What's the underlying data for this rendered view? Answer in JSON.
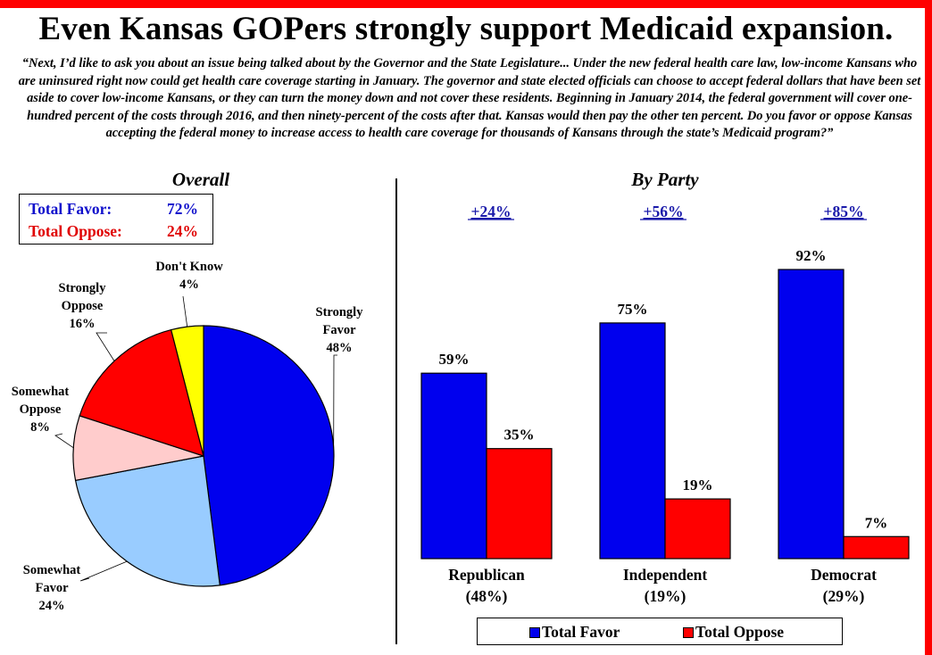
{
  "title": "Even Kansas GOPers strongly support Medicaid expansion.",
  "question": "“Next, I’d like to ask you about an issue being talked about by the Governor and the State Legislature... Under the new federal health care law, low-income Kansans who are uninsured right now could get health care coverage starting in January. The governor and state elected officials can choose to accept federal dollars that have been set aside to cover low-income Kansans, or they can turn the money down and not cover these residents. Beginning in January 2014, the federal government will cover one-hundred percent of the costs through 2016, and then ninety-percent of the costs after that. Kansas would then pay the other ten percent. Do you favor or oppose Kansas accepting the federal money to increase access to health care coverage for thousands of Kansans through the state’s Medicaid program?”",
  "totals": {
    "favor_label": "Total Favor:",
    "favor_value": "72%",
    "oppose_label": "Total Oppose:",
    "oppose_value": "24%"
  },
  "colors": {
    "favor": "#0000ee",
    "oppose": "#ff0000",
    "strongly_favor": "#0000ee",
    "somewhat_favor": "#99ccff",
    "somewhat_oppose": "#ffcccc",
    "strongly_oppose": "#ff0000",
    "dont_know": "#ffff00",
    "margin_text": "#1a1aaa"
  },
  "chart_data": [
    {
      "type": "pie",
      "title": "Overall",
      "slices": [
        {
          "label": "Strongly Favor",
          "value": 48,
          "display": "48%",
          "color": "#0000ee"
        },
        {
          "label": "Somewhat Favor",
          "value": 24,
          "display": "24%",
          "color": "#99ccff"
        },
        {
          "label": "Somewhat Oppose",
          "value": 8,
          "display": "8%",
          "color": "#ffcccc"
        },
        {
          "label": "Strongly Oppose",
          "value": 16,
          "display": "16%",
          "color": "#ff0000"
        },
        {
          "label": "Don't Know",
          "value": 4,
          "display": "4%",
          "color": "#ffff00"
        }
      ]
    },
    {
      "type": "bar",
      "title": "By Party",
      "categories": [
        "Republican",
        "Independent",
        "Democrat"
      ],
      "category_shares": [
        "(48%)",
        "(19%)",
        "(29%)"
      ],
      "margins": [
        "+24%",
        "+56%",
        "+85%"
      ],
      "series": [
        {
          "name": "Total Favor",
          "values": [
            59,
            75,
            92
          ],
          "labels": [
            "59%",
            "75%",
            "92%"
          ],
          "color": "#0000ee"
        },
        {
          "name": "Total Oppose",
          "values": [
            35,
            19,
            7
          ],
          "labels": [
            "35%",
            "19%",
            "7%"
          ],
          "color": "#ff0000"
        }
      ],
      "ylim": [
        0,
        100
      ],
      "legend": "bottom"
    }
  ]
}
